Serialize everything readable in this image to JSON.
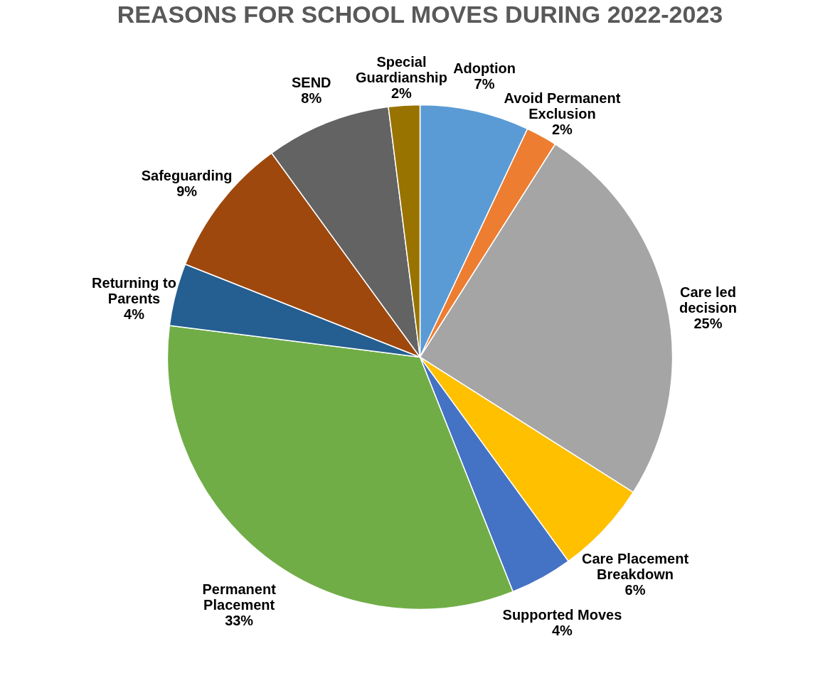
{
  "chart_data": {
    "type": "pie",
    "title": "REASONS FOR SCHOOL MOVES DURING 2022-2023",
    "categories": [
      "Adoption",
      "Avoid Permanent Exclusion",
      "Care led decision",
      "Care Placement Breakdown",
      "Supported Moves",
      "Permanent Placement",
      "Returning to Parents",
      "Safeguarding",
      "SEND",
      "Special Guardianship"
    ],
    "values": [
      7,
      2,
      25,
      6,
      4,
      33,
      4,
      9,
      8,
      2
    ],
    "value_labels": [
      "7%",
      "2%",
      "25%",
      "6%",
      "4%",
      "33%",
      "4%",
      "9%",
      "8%",
      "2%"
    ],
    "colors": [
      "#5b9bd5",
      "#ed7d31",
      "#a5a5a5",
      "#ffc000",
      "#4472c4",
      "#70ad47",
      "#255e91",
      "#9e480e",
      "#636363",
      "#997300"
    ]
  }
}
